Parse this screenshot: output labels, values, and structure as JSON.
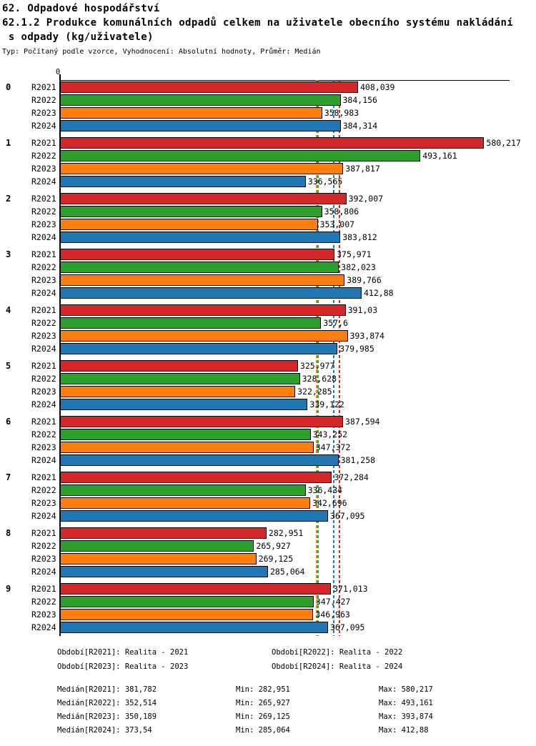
{
  "header": {
    "section_title": "62. Odpadové hospodářství",
    "chart_title_line1": "62.1.2 Produkce komunálních odpadů celkem na uživatele obecního systému nakládání",
    "chart_title_line2": " s odpady (kg/uživatele)",
    "meta": "Typ: Počítaný podle vzorce, Vyhodnocení: Absolutní hodnoty, Průměr: Medián"
  },
  "chart_data": {
    "type": "bar",
    "orientation": "horizontal",
    "title": "62.1.2 Produkce komunálních odpadů celkem na uživatele obecního systému nakládání s odpady (kg/uživatele)",
    "axis": {
      "origin_tick_label": "0",
      "xmin": 0,
      "xmax": 615,
      "grid": false
    },
    "categories": [
      "0",
      "1",
      "2",
      "3",
      "4",
      "5",
      "6",
      "7",
      "8",
      "9"
    ],
    "series": [
      {
        "name": "R2021",
        "color": "#d62728",
        "values": [
          408.039,
          580.217,
          392.007,
          375.971,
          391.03,
          325.977,
          387.594,
          372.284,
          282.951,
          371.013
        ],
        "value_labels": [
          "408,039",
          "580,217",
          "392,007",
          "375,971",
          "391,03",
          "325,977",
          "387,594",
          "372,284",
          "282,951",
          "371,013"
        ],
        "median": 381.782,
        "median_label": "381,782"
      },
      {
        "name": "R2022",
        "color": "#2ca02c",
        "values": [
          384.156,
          493.161,
          358.806,
          382.023,
          357.6,
          328.628,
          343.252,
          336.434,
          265.927,
          347.427
        ],
        "value_labels": [
          "384,156",
          "493,161",
          "358,806",
          "382,023",
          "357,6",
          "328,628",
          "343,252",
          "336,434",
          "265,927",
          "347,427"
        ],
        "median": 352.514,
        "median_label": "352,514"
      },
      {
        "name": "R2023",
        "color": "#ff7f0e",
        "values": [
          358.983,
          387.817,
          353.007,
          389.766,
          393.874,
          322.285,
          347.372,
          342.696,
          269.125,
          346.963
        ],
        "value_labels": [
          "358,983",
          "387,817",
          "353,007",
          "389,766",
          "393,874",
          "322,285",
          "347,372",
          "342,696",
          "269,125",
          "346,963"
        ],
        "median": 350.189,
        "median_label": "350,189"
      },
      {
        "name": "R2024",
        "color": "#1f77b4",
        "values": [
          384.314,
          336.565,
          383.812,
          412.88,
          379.985,
          339.122,
          381.258,
          367.095,
          285.064,
          367.095
        ],
        "value_labels": [
          "384,314",
          "336,565",
          "383,812",
          "412,88",
          "379,985",
          "339,122",
          "381,258",
          "367,095",
          "285,064",
          "367,095"
        ],
        "median": 373.54,
        "median_label": "373,54"
      }
    ],
    "legend_position": "below"
  },
  "footer": {
    "periods": [
      "Období[R2021]: Realita - 2021",
      "Období[R2022]: Realita - 2022",
      "Období[R2023]: Realita - 2023",
      "Období[R2024]: Realita - 2024"
    ],
    "stats": [
      [
        "Medián[R2021]: 381,782",
        "Min: 282,951",
        "Max: 580,217"
      ],
      [
        "Medián[R2022]: 352,514",
        "Min: 265,927",
        "Max: 493,161"
      ],
      [
        "Medián[R2023]: 350,189",
        "Min: 269,125",
        "Max: 393,874"
      ],
      [
        "Medián[R2024]: 373,54",
        "Min: 285,064",
        "Max: 412,88"
      ]
    ]
  }
}
